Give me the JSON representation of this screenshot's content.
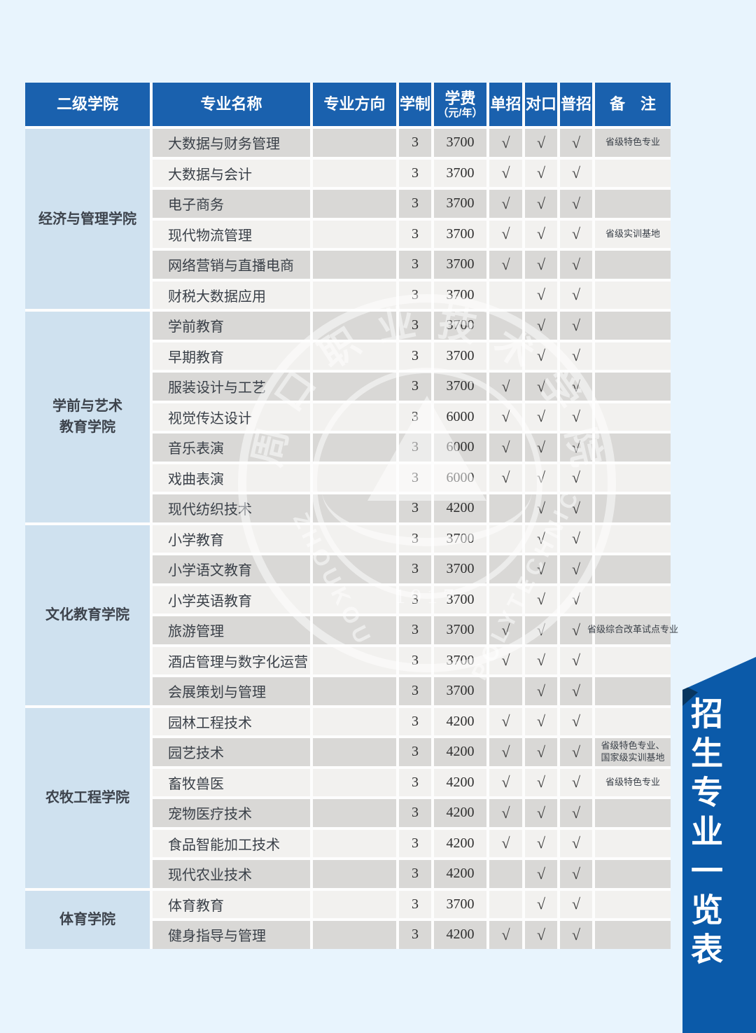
{
  "page": {
    "background": "#e8f4fd"
  },
  "ribbon": {
    "label": "招生专业一览表",
    "color": "#0b5aa9",
    "fold_color": "#08365f"
  },
  "watermark": {
    "school_chars": [
      "周",
      "口",
      "职",
      "业",
      "技",
      "术",
      "学",
      "院"
    ],
    "word_left": "ZHOUKOU",
    "word_right": "POLYTECHNIC",
    "year": "1917"
  },
  "table": {
    "check_symbol": "√",
    "headers": {
      "college": "二级学院",
      "major": "专业名称",
      "direction": "专业方向",
      "years": "学制",
      "tuition_line1": "学费",
      "tuition_line2": "（元/年）",
      "single": "单招",
      "counterpart": "对口",
      "general": "普招",
      "remark": "备　注"
    },
    "groups": [
      {
        "college_lines": [
          "经济与管理学院"
        ],
        "rows": [
          {
            "major": "大数据与财务管理",
            "direction": "",
            "years": "3",
            "tuition": "3700",
            "single": true,
            "counterpart": true,
            "general": true,
            "remark": [
              "省级特色专业"
            ]
          },
          {
            "major": "大数据与会计",
            "direction": "",
            "years": "3",
            "tuition": "3700",
            "single": true,
            "counterpart": true,
            "general": true,
            "remark": []
          },
          {
            "major": "电子商务",
            "direction": "",
            "years": "3",
            "tuition": "3700",
            "single": true,
            "counterpart": true,
            "general": true,
            "remark": []
          },
          {
            "major": "现代物流管理",
            "direction": "",
            "years": "3",
            "tuition": "3700",
            "single": true,
            "counterpart": true,
            "general": true,
            "remark": [
              "省级实训基地"
            ]
          },
          {
            "major": "网络营销与直播电商",
            "direction": "",
            "years": "3",
            "tuition": "3700",
            "single": true,
            "counterpart": true,
            "general": true,
            "remark": []
          },
          {
            "major": "财税大数据应用",
            "direction": "",
            "years": "3",
            "tuition": "3700",
            "single": false,
            "counterpart": true,
            "general": true,
            "remark": []
          }
        ]
      },
      {
        "college_lines": [
          "学前与艺术",
          "教育学院"
        ],
        "rows": [
          {
            "major": "学前教育",
            "direction": "",
            "years": "3",
            "tuition": "3700",
            "single": false,
            "counterpart": true,
            "general": true,
            "remark": []
          },
          {
            "major": "早期教育",
            "direction": "",
            "years": "3",
            "tuition": "3700",
            "single": false,
            "counterpart": true,
            "general": true,
            "remark": []
          },
          {
            "major": "服装设计与工艺",
            "direction": "",
            "years": "3",
            "tuition": "3700",
            "single": true,
            "counterpart": true,
            "general": true,
            "remark": []
          },
          {
            "major": "视觉传达设计",
            "direction": "",
            "years": "3",
            "tuition": "6000",
            "single": true,
            "counterpart": true,
            "general": true,
            "remark": []
          },
          {
            "major": "音乐表演",
            "direction": "",
            "years": "3",
            "tuition": "6000",
            "single": true,
            "counterpart": true,
            "general": true,
            "remark": []
          },
          {
            "major": "戏曲表演",
            "direction": "",
            "years": "3",
            "tuition": "6000",
            "single": true,
            "counterpart": true,
            "general": true,
            "remark": []
          },
          {
            "major": "现代纺织技术",
            "direction": "",
            "years": "3",
            "tuition": "4200",
            "single": false,
            "counterpart": true,
            "general": true,
            "remark": []
          }
        ]
      },
      {
        "college_lines": [
          "文化教育学院"
        ],
        "rows": [
          {
            "major": "小学教育",
            "direction": "",
            "years": "3",
            "tuition": "3700",
            "single": false,
            "counterpart": true,
            "general": true,
            "remark": []
          },
          {
            "major": "小学语文教育",
            "direction": "",
            "years": "3",
            "tuition": "3700",
            "single": false,
            "counterpart": true,
            "general": true,
            "remark": []
          },
          {
            "major": "小学英语教育",
            "direction": "",
            "years": "3",
            "tuition": "3700",
            "single": false,
            "counterpart": true,
            "general": true,
            "remark": []
          },
          {
            "major": "旅游管理",
            "direction": "",
            "years": "3",
            "tuition": "3700",
            "single": true,
            "counterpart": true,
            "general": true,
            "remark": [
              "省级综合改革试点专业"
            ]
          },
          {
            "major": "酒店管理与数字化运营",
            "direction": "",
            "years": "3",
            "tuition": "3700",
            "single": true,
            "counterpart": true,
            "general": true,
            "remark": []
          },
          {
            "major": "会展策划与管理",
            "direction": "",
            "years": "3",
            "tuition": "3700",
            "single": false,
            "counterpart": true,
            "general": true,
            "remark": []
          }
        ]
      },
      {
        "college_lines": [
          "农牧工程学院"
        ],
        "rows": [
          {
            "major": "园林工程技术",
            "direction": "",
            "years": "3",
            "tuition": "4200",
            "single": true,
            "counterpart": true,
            "general": true,
            "remark": []
          },
          {
            "major": "园艺技术",
            "direction": "",
            "years": "3",
            "tuition": "4200",
            "single": true,
            "counterpart": true,
            "general": true,
            "remark": [
              "省级特色专业、",
              "国家级实训基地"
            ]
          },
          {
            "major": "畜牧兽医",
            "direction": "",
            "years": "3",
            "tuition": "4200",
            "single": true,
            "counterpart": true,
            "general": true,
            "remark": [
              "省级特色专业"
            ]
          },
          {
            "major": "宠物医疗技术",
            "direction": "",
            "years": "3",
            "tuition": "4200",
            "single": true,
            "counterpart": true,
            "general": true,
            "remark": []
          },
          {
            "major": "食品智能加工技术",
            "direction": "",
            "years": "3",
            "tuition": "4200",
            "single": true,
            "counterpart": true,
            "general": true,
            "remark": []
          },
          {
            "major": "现代农业技术",
            "direction": "",
            "years": "3",
            "tuition": "4200",
            "single": false,
            "counterpart": true,
            "general": true,
            "remark": []
          }
        ]
      },
      {
        "college_lines": [
          "体育学院"
        ],
        "rows": [
          {
            "major": "体育教育",
            "direction": "",
            "years": "3",
            "tuition": "3700",
            "single": false,
            "counterpart": true,
            "general": true,
            "remark": []
          },
          {
            "major": "健身指导与管理",
            "direction": "",
            "years": "3",
            "tuition": "4200",
            "single": true,
            "counterpart": true,
            "general": true,
            "remark": []
          }
        ]
      }
    ]
  }
}
